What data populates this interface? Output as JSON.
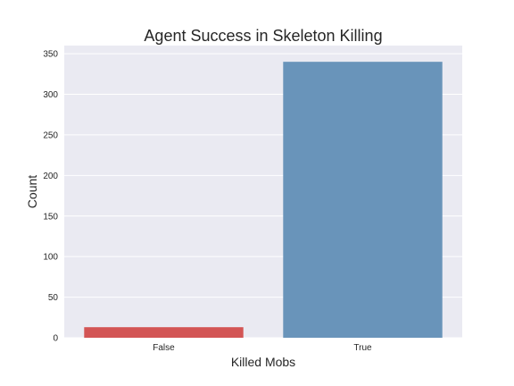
{
  "chart_data": {
    "type": "bar",
    "title": "Agent Success in Skeleton Killing",
    "xlabel": "Killed Mobs",
    "ylabel": "Count",
    "categories": [
      "False",
      "True"
    ],
    "values": [
      13,
      340
    ],
    "ylim": [
      0,
      360
    ],
    "yticks": [
      0,
      50,
      100,
      150,
      200,
      250,
      300,
      350
    ],
    "grid": true,
    "colors": [
      "#d35555",
      "#6994ba"
    ],
    "background": "#eaeaf2"
  }
}
